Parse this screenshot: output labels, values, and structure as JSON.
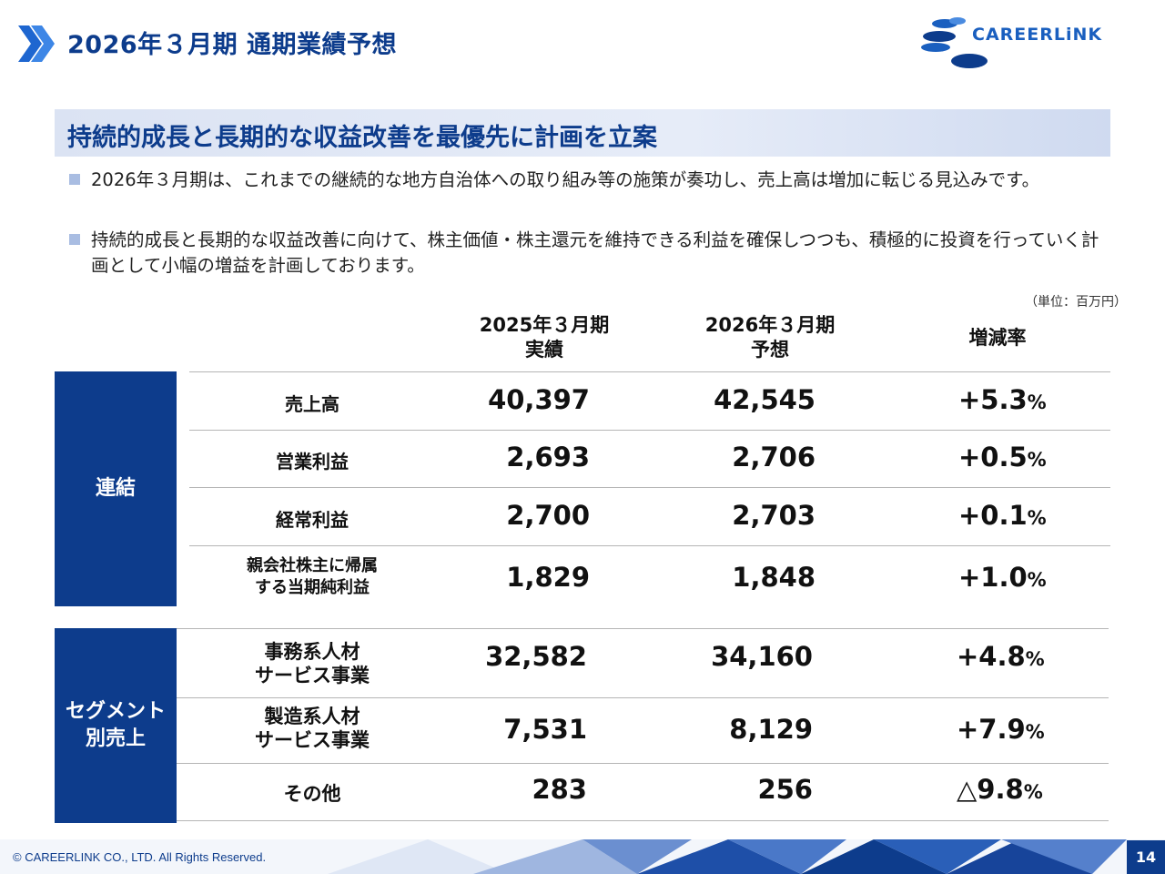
{
  "header": {
    "title": "2026年３月期 通期業績予想",
    "logo_text": "CAREERLiNK"
  },
  "banner": {
    "text": "持続的成長と長期的な収益改善を最優先に計画を立案"
  },
  "bullets": [
    "2026年３月期は、これまでの継続的な地方自治体への取り組み等の施策が奏功し、売上高は増加に転じる見込みです。",
    "持続的成長と長期的な収益改善に向けて、株主価値・株主還元を維持できる利益を確保しつつも、積極的に投資を行っていく計画として小幅の増益を計画しております。"
  ],
  "unit": "（単位：百万円）",
  "columns": {
    "prev_year": "2025年３月期",
    "prev_sub": "実績",
    "next_year": "2026年３月期",
    "next_sub": "予想",
    "change": "増減率"
  },
  "groups": {
    "consolidated": "連結",
    "segment_line1": "セグメント",
    "segment_line2": "別売上"
  },
  "consolidated_rows": [
    {
      "label1": "売上高",
      "label2": "",
      "actual": "40,397",
      "forecast": "42,545",
      "rate": "+5.3",
      "pct": "%"
    },
    {
      "label1": "営業利益",
      "label2": "",
      "actual": "2,693",
      "forecast": "2,706",
      "rate": "+0.5",
      "pct": "%"
    },
    {
      "label1": "経常利益",
      "label2": "",
      "actual": "2,700",
      "forecast": "2,703",
      "rate": "+0.1",
      "pct": "%"
    },
    {
      "label1": "親会社株主に帰属",
      "label2": "する当期純利益",
      "actual": "1,829",
      "forecast": "1,848",
      "rate": "+1.0",
      "pct": "%"
    }
  ],
  "segment_rows": [
    {
      "label1": "事務系人材",
      "label2": "サービス事業",
      "actual": "32,582",
      "forecast": "34,160",
      "rate": "+4.8",
      "pct": "%"
    },
    {
      "label1": "製造系人材",
      "label2": "サービス事業",
      "actual": "7,531",
      "forecast": "8,129",
      "rate": "+7.9",
      "pct": "%"
    },
    {
      "label1": "その他",
      "label2": "",
      "actual": "283",
      "forecast": "256",
      "rate": "△9.8",
      "pct": "%"
    }
  ],
  "footer": {
    "copyright": "© CAREERLINK CO., LTD. All Rights Reserved.",
    "page": "14"
  },
  "colors": {
    "navy": "#0d3c8c",
    "banner_bg": "#dbe3f3",
    "logo_blue": "#1a5fbf"
  },
  "icons": [
    "double-chevron-icon",
    "careerlink-logo-icon"
  ]
}
